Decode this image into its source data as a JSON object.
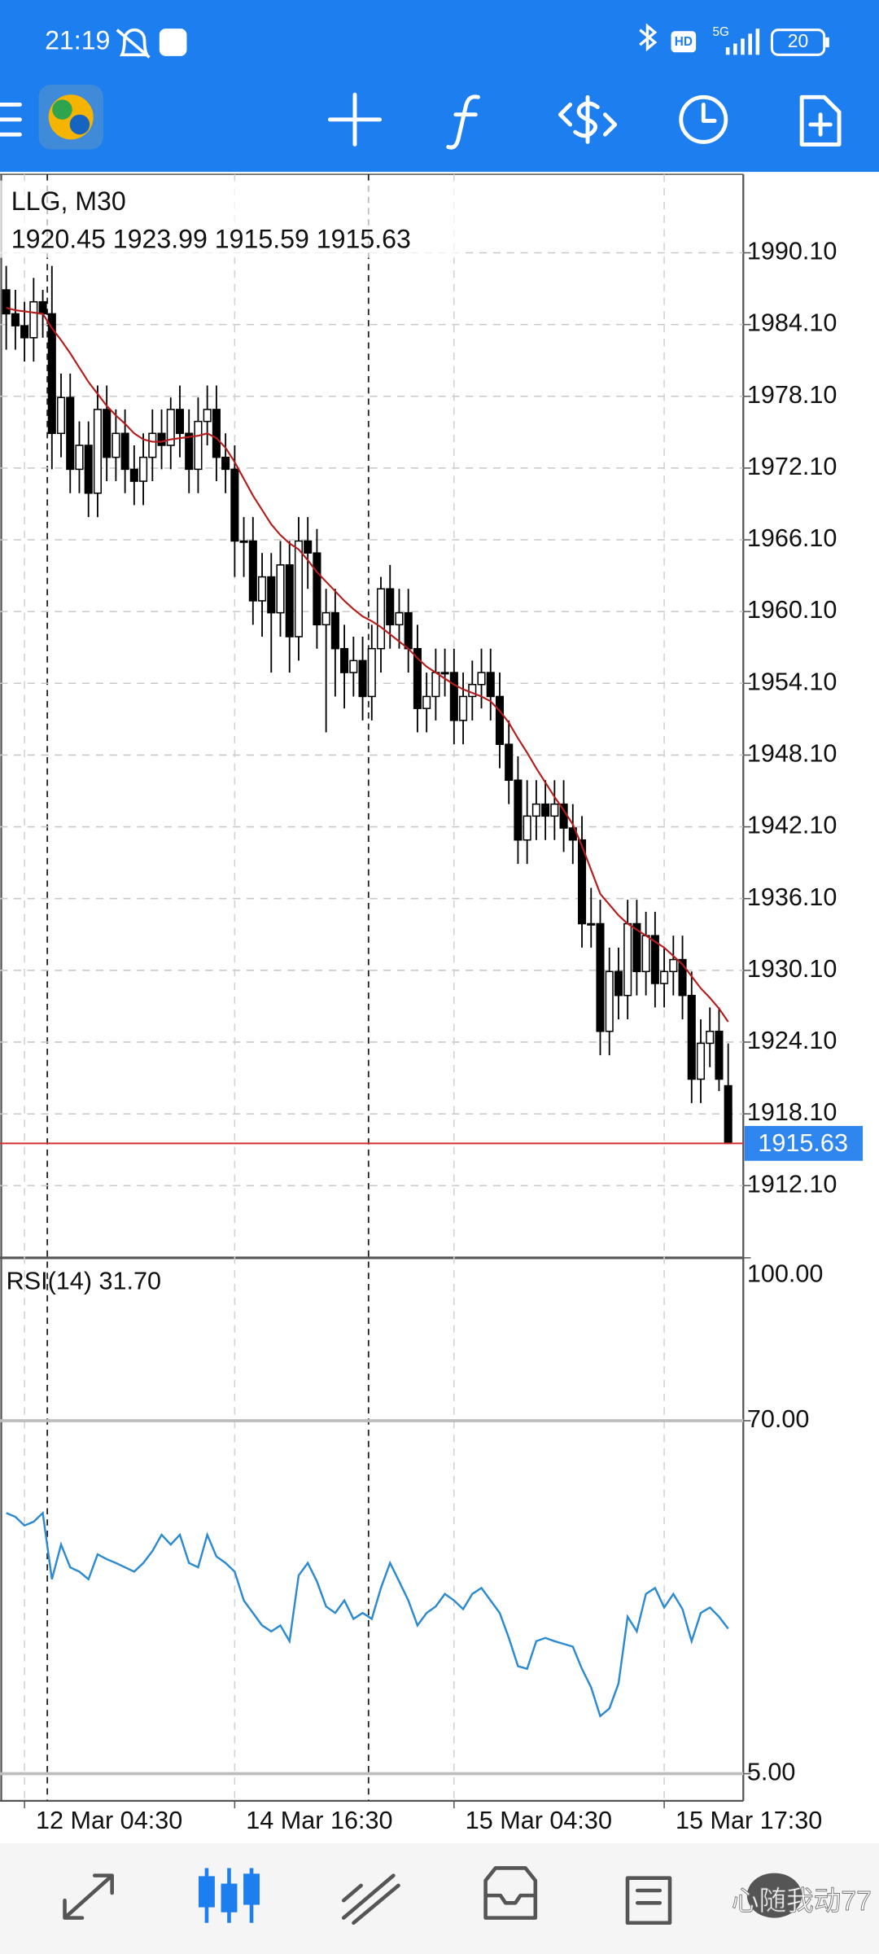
{
  "status_bar": {
    "time": "21:19",
    "hd": "HD",
    "network": "5G",
    "battery": "20"
  },
  "chart_data": [
    {
      "type": "candlestick",
      "title": "LLG, M30",
      "categories": [
        null,
        null,
        "12 Mar 04:30",
        null,
        null,
        null,
        null,
        null,
        null,
        null,
        null,
        null,
        null,
        null,
        null,
        null,
        null,
        null,
        null,
        null,
        null,
        null,
        null,
        null,
        null,
        "14 Mar 16:30",
        null,
        null,
        null,
        null,
        null,
        null,
        null,
        null,
        null,
        null,
        null,
        null,
        null,
        null,
        null,
        null,
        null,
        null,
        null,
        null,
        null,
        null,
        null,
        "15 Mar 04:30",
        null,
        null,
        null,
        null,
        null,
        null,
        null,
        null,
        null,
        null,
        null,
        null,
        null,
        null,
        null,
        null,
        null,
        null,
        null,
        null,
        null,
        null,
        "15 Mar 17:30",
        null,
        null,
        null,
        null,
        null,
        null,
        null
      ],
      "open": [
        1987,
        1985,
        1984,
        1983,
        1986,
        1985,
        1975,
        1978,
        1972,
        1974,
        1970,
        1977,
        1973,
        1975,
        1972,
        1971,
        1973,
        1975,
        1974,
        1977,
        1975,
        1972,
        1976,
        1977,
        1973,
        1972,
        1966,
        1966,
        1961,
        1963,
        1960,
        1964,
        1958,
        1966,
        1965,
        1959,
        1960,
        1957,
        1955,
        1956,
        1953,
        1957,
        1962,
        1959,
        1960,
        1957,
        1952,
        1953,
        1955,
        1955,
        1951,
        1953,
        1954,
        1955,
        1953,
        1949,
        1946,
        1941,
        1943,
        1944,
        1943,
        1944,
        1942,
        1941,
        1934,
        1934,
        1925,
        1930,
        1928,
        1934,
        1930,
        1933,
        1929,
        1930,
        1931,
        1928,
        1921,
        1924,
        1925,
        1920.45
      ],
      "high": [
        1989,
        1987,
        1986,
        1988,
        1987,
        1989,
        1980,
        1980,
        1976,
        1976,
        1979,
        1979,
        1977,
        1977,
        1974,
        1975,
        1977,
        1977,
        1978,
        1979,
        1977,
        1978,
        1979,
        1979,
        1975,
        1974,
        1968,
        1968,
        1965,
        1965,
        1966,
        1966,
        1968,
        1968,
        1967,
        1962,
        1962,
        1959,
        1958,
        1958,
        1959,
        1963,
        1964,
        1962,
        1962,
        1959,
        1955,
        1957,
        1957,
        1957,
        1955,
        1956,
        1957,
        1957,
        1955,
        1951,
        1948,
        1946,
        1946,
        1946,
        1946,
        1946,
        1944,
        1943,
        1937,
        1936,
        1932,
        1932,
        1936,
        1936,
        1935,
        1935,
        1932,
        1933,
        1933,
        1930,
        1926,
        1927,
        1927,
        1923.99
      ],
      "low": [
        1982,
        1982,
        1981,
        1981,
        1983,
        1972,
        1973,
        1970,
        1970,
        1968,
        1968,
        1971,
        1971,
        1970,
        1969,
        1969,
        1971,
        1972,
        1972,
        1973,
        1970,
        1970,
        1974,
        1971,
        1970,
        1963,
        1963,
        1959,
        1958,
        1955,
        1958,
        1955,
        1956,
        1962,
        1957,
        1950,
        1953,
        1952,
        1953,
        1951,
        1951,
        1955,
        1957,
        1957,
        1955,
        1950,
        1950,
        1951,
        1953,
        1949,
        1949,
        1951,
        1952,
        1951,
        1947,
        1944,
        1939,
        1939,
        1941,
        1941,
        1941,
        1940,
        1939,
        1932,
        1932,
        1923,
        1923,
        1926,
        1926,
        1928,
        1928,
        1927,
        1927,
        1928,
        1926,
        1919,
        1919,
        1922,
        1920,
        1915.59
      ],
      "close": [
        1985,
        1984,
        1983,
        1986,
        1985,
        1975,
        1978,
        1972,
        1974,
        1970,
        1977,
        1973,
        1975,
        1972,
        1971,
        1973,
        1975,
        1974,
        1977,
        1975,
        1972,
        1976,
        1977,
        1973,
        1972,
        1966,
        1966,
        1961,
        1963,
        1960,
        1964,
        1958,
        1966,
        1965,
        1959,
        1960,
        1957,
        1955,
        1956,
        1953,
        1957,
        1962,
        1959,
        1960,
        1957,
        1952,
        1953,
        1955,
        1955,
        1951,
        1953,
        1954,
        1955,
        1953,
        1949,
        1946,
        1941,
        1943,
        1944,
        1943,
        1944,
        1942,
        1941,
        1934,
        1934,
        1925,
        1930,
        1928,
        1934,
        1930,
        1933,
        1929,
        1930,
        1931,
        1928,
        1921,
        1924,
        1925,
        1921,
        1915.63
      ],
      "up_color": "#ffffff",
      "down_color": "#000000",
      "ma": {
        "color": "#b71c1c",
        "values": [
          1985.5,
          1985.3,
          1985.2,
          1985.1,
          1985,
          1983.8,
          1982.8,
          1981.7,
          1980.5,
          1979.3,
          1978.3,
          1977.3,
          1976.5,
          1975.8,
          1975,
          1974.5,
          1974.3,
          1974.3,
          1974.5,
          1974.6,
          1974.7,
          1974.8,
          1975,
          1974.6,
          1973.8,
          1972.6,
          1971.2,
          1969.8,
          1968.6,
          1967.4,
          1966.5,
          1965.8,
          1965.3,
          1964.4,
          1963.4,
          1962.6,
          1961.8,
          1961,
          1960.3,
          1959.7,
          1959.3,
          1958.8,
          1958.2,
          1957.6,
          1957,
          1956.2,
          1955.5,
          1955,
          1954.5,
          1954,
          1953.6,
          1953.3,
          1953,
          1952.6,
          1951.8,
          1950.8,
          1949.5,
          1948.3,
          1947,
          1945.8,
          1944.6,
          1943.5,
          1942.3,
          1940.5,
          1938.5,
          1936.5,
          1935.6,
          1934.7,
          1934,
          1933.5,
          1933,
          1932.5,
          1932,
          1931.3,
          1930.6,
          1929.6,
          1928.6,
          1927.8,
          1926.9,
          1925.8
        ]
      },
      "price_line_color": "#d32f2f",
      "price_tag_color": "#2f86ee",
      "ylim": [
        1906.06,
        1996.66
      ],
      "yticks": [
        {
          "value": 1990.1,
          "label": "1990.10"
        },
        {
          "value": 1984.1,
          "label": "1984.10"
        },
        {
          "value": 1978.1,
          "label": "1978.10"
        },
        {
          "value": 1972.1,
          "label": "1972.10"
        },
        {
          "value": 1966.1,
          "label": "1966.10"
        },
        {
          "value": 1960.1,
          "label": "1960.10"
        },
        {
          "value": 1954.1,
          "label": "1954.10"
        },
        {
          "value": 1948.1,
          "label": "1948.10"
        },
        {
          "value": 1942.1,
          "label": "1942.10"
        },
        {
          "value": 1936.1,
          "label": "1936.10"
        },
        {
          "value": 1930.1,
          "label": "1930.10"
        },
        {
          "value": 1924.1,
          "label": "1924.10"
        },
        {
          "value": 1918.1,
          "label": "1918.10"
        },
        {
          "value": 1912.1,
          "label": "1912.10"
        }
      ],
      "grid": true
    },
    {
      "type": "line",
      "title": "RSI(14) 31.70",
      "color": "#2b8ad0",
      "values": [
        53,
        52.3,
        50.7,
        51.4,
        53,
        40.8,
        47.2,
        43,
        42.2,
        40.8,
        45.4,
        44.5,
        43.8,
        43,
        42.2,
        43.8,
        46,
        49,
        47.2,
        49,
        43.8,
        43,
        49,
        45,
        43.8,
        42.2,
        36.9,
        34.6,
        32.3,
        31.2,
        32.3,
        29.4,
        41.5,
        43.8,
        40.4,
        35.8,
        34.6,
        36.9,
        33.5,
        34.6,
        33.5,
        39.2,
        43.8,
        40.4,
        36.9,
        32.3,
        34.6,
        35.8,
        38.1,
        36.9,
        35.3,
        38.1,
        39.2,
        36.9,
        34.6,
        30,
        24.8,
        24.3,
        29.4,
        30,
        29.4,
        28.9,
        28.4,
        24.3,
        20.9,
        15.6,
        17,
        21.6,
        33.9,
        31.2,
        38.1,
        39.2,
        35.6,
        38.1,
        35.3,
        29.4,
        34.6,
        35.6,
        33.9,
        31.7
      ],
      "ylim": [
        0,
        100
      ],
      "yticks": [
        {
          "value": 100,
          "label": "100.00"
        },
        {
          "value": 70,
          "label": "70.00"
        },
        {
          "value": 5,
          "label": "5.00"
        }
      ]
    }
  ],
  "watermark": "心随我动77"
}
